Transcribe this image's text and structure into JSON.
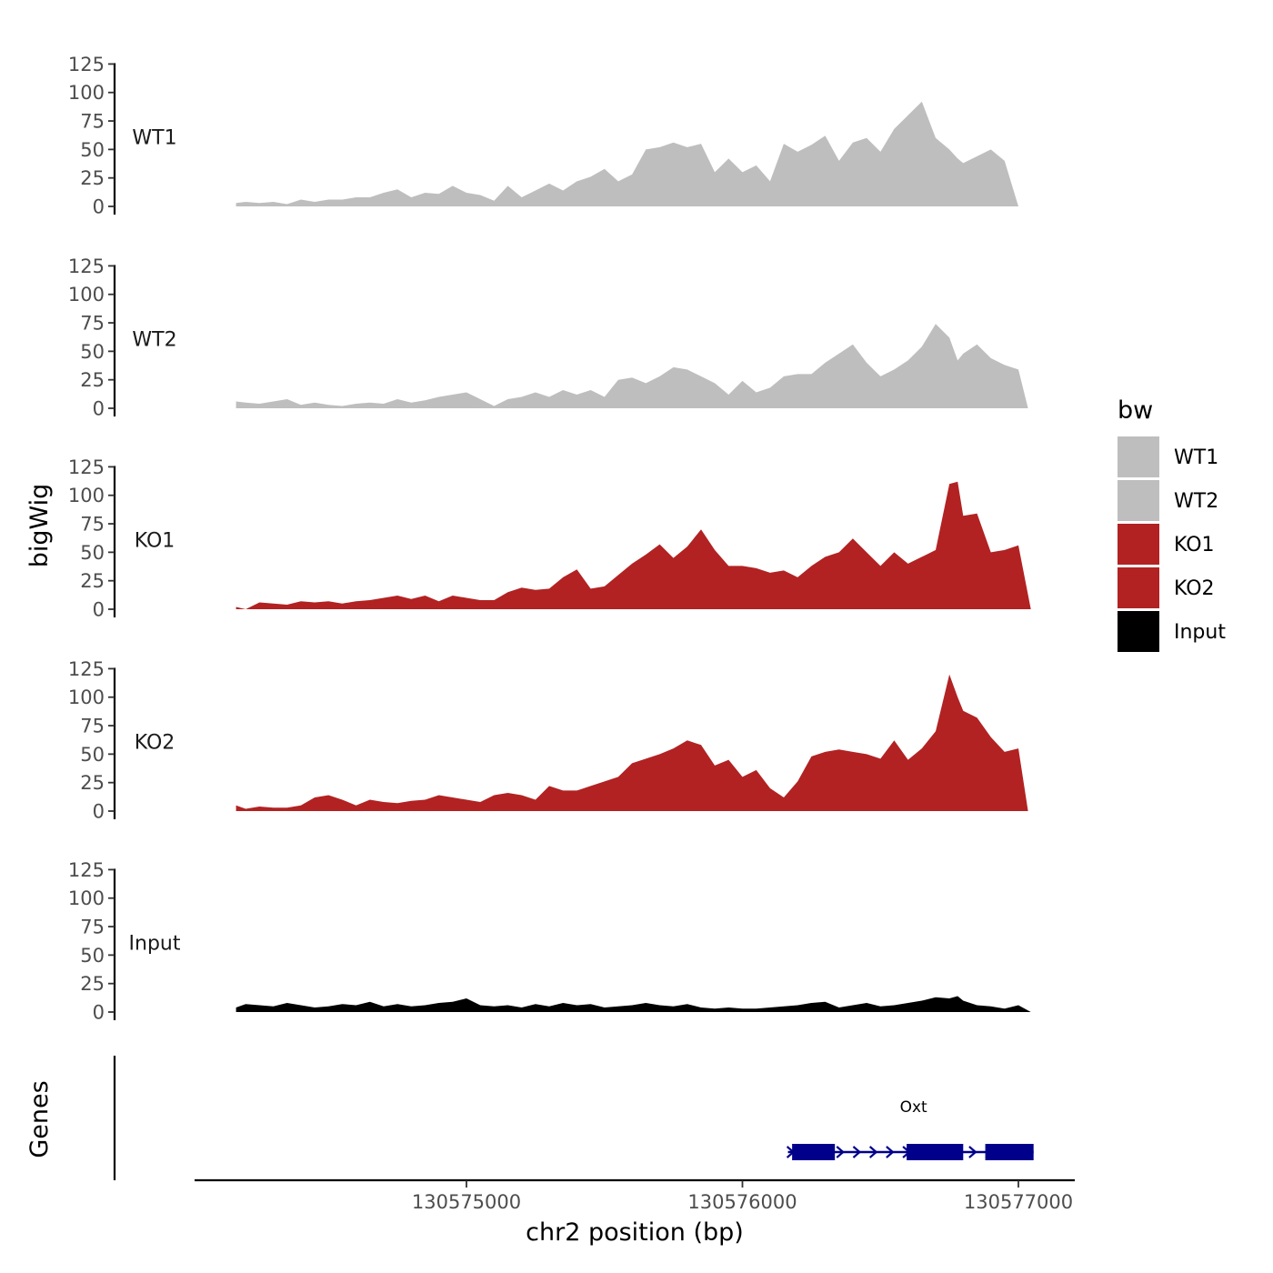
{
  "chart_data": {
    "type": "area",
    "ylabel": "bigWig",
    "xlabel": "chr2 position (bp)",
    "genes_label": "Genes",
    "ylim": [
      0,
      125
    ],
    "y_ticks": [
      0,
      25,
      50,
      75,
      100,
      125
    ],
    "xlim": [
      130574000,
      130577200
    ],
    "x_ticks": [
      130575000,
      130576000,
      130577000
    ],
    "x_tick_labels": [
      "130575000",
      "130576000",
      "130577000"
    ],
    "legend": {
      "title": "bw",
      "placement": "right",
      "entries": [
        {
          "label": "WT1",
          "color": "#bebebe"
        },
        {
          "label": "WT2",
          "color": "#bebebe"
        },
        {
          "label": "KO1",
          "color": "#b22222"
        },
        {
          "label": "KO2",
          "color": "#b22222"
        },
        {
          "label": "Input",
          "color": "#000000"
        }
      ]
    },
    "series": [
      {
        "name": "WT1",
        "color": "#bebebe",
        "x": [
          130574165,
          130574200,
          130574250,
          130574300,
          130574350,
          130574400,
          130574450,
          130574500,
          130574550,
          130574600,
          130574650,
          130574700,
          130574750,
          130574800,
          130574850,
          130574900,
          130574950,
          130575000,
          130575050,
          130575100,
          130575150,
          130575200,
          130575250,
          130575300,
          130575350,
          130575400,
          130575450,
          130575500,
          130575550,
          130575600,
          130575650,
          130575700,
          130575750,
          130575800,
          130575850,
          130575900,
          130575950,
          130576000,
          130576050,
          130576100,
          130576150,
          130576200,
          130576250,
          130576300,
          130576350,
          130576400,
          130576450,
          130576500,
          130576550,
          130576600,
          130576650,
          130576700,
          130576750,
          130576780,
          130576800,
          130576850,
          130576900,
          130576950,
          130577000,
          130577035
        ],
        "y": [
          3,
          4,
          3,
          4,
          2,
          6,
          4,
          6,
          6,
          8,
          8,
          12,
          15,
          8,
          12,
          11,
          18,
          12,
          10,
          5,
          18,
          8,
          14,
          20,
          14,
          22,
          26,
          33,
          22,
          28,
          50,
          52,
          56,
          52,
          55,
          30,
          42,
          30,
          36,
          22,
          55,
          48,
          54,
          62,
          40,
          56,
          60,
          48,
          68,
          80,
          92,
          60,
          50,
          42,
          38,
          44,
          50,
          40,
          0,
          0
        ]
      },
      {
        "name": "WT2",
        "color": "#bebebe",
        "x": [
          130574165,
          130574200,
          130574250,
          130574300,
          130574350,
          130574400,
          130574450,
          130574500,
          130574550,
          130574600,
          130574650,
          130574700,
          130574750,
          130574800,
          130574850,
          130574900,
          130574950,
          130575000,
          130575050,
          130575100,
          130575150,
          130575200,
          130575250,
          130575300,
          130575350,
          130575400,
          130575450,
          130575500,
          130575550,
          130575600,
          130575650,
          130575700,
          130575750,
          130575800,
          130575850,
          130575900,
          130575950,
          130576000,
          130576050,
          130576100,
          130576150,
          130576200,
          130576250,
          130576300,
          130576350,
          130576400,
          130576450,
          130576500,
          130576550,
          130576600,
          130576650,
          130576700,
          130576750,
          130576780,
          130576800,
          130576850,
          130576900,
          130576950,
          130577000,
          130577035
        ],
        "y": [
          6,
          5,
          4,
          6,
          8,
          3,
          5,
          3,
          2,
          4,
          5,
          4,
          8,
          5,
          7,
          10,
          12,
          14,
          8,
          2,
          8,
          10,
          14,
          10,
          16,
          12,
          16,
          10,
          25,
          27,
          22,
          28,
          36,
          34,
          28,
          22,
          12,
          24,
          14,
          18,
          28,
          30,
          30,
          40,
          48,
          56,
          40,
          28,
          34,
          42,
          54,
          74,
          62,
          42,
          48,
          56,
          44,
          38,
          34,
          0
        ]
      },
      {
        "name": "KO1",
        "color": "#b22222",
        "x": [
          130574165,
          130574200,
          130574250,
          130574300,
          130574350,
          130574400,
          130574450,
          130574500,
          130574550,
          130574600,
          130574650,
          130574700,
          130574750,
          130574800,
          130574850,
          130574900,
          130574950,
          130575000,
          130575050,
          130575100,
          130575150,
          130575200,
          130575250,
          130575300,
          130575350,
          130575400,
          130575450,
          130575500,
          130575550,
          130575600,
          130575650,
          130575700,
          130575750,
          130575800,
          130575850,
          130575900,
          130575950,
          130576000,
          130576050,
          130576100,
          130576150,
          130576200,
          130576250,
          130576300,
          130576350,
          130576400,
          130576450,
          130576500,
          130576550,
          130576600,
          130576650,
          130576700,
          130576750,
          130576780,
          130576800,
          130576850,
          130576900,
          130576950,
          130577000,
          130577045
        ],
        "y": [
          2,
          0,
          6,
          5,
          4,
          7,
          6,
          7,
          5,
          7,
          8,
          10,
          12,
          9,
          12,
          7,
          12,
          10,
          8,
          8,
          15,
          19,
          17,
          18,
          28,
          35,
          18,
          20,
          30,
          40,
          48,
          57,
          45,
          55,
          70,
          52,
          38,
          38,
          36,
          32,
          34,
          28,
          38,
          46,
          50,
          62,
          50,
          38,
          50,
          40,
          46,
          52,
          110,
          112,
          82,
          84,
          50,
          52,
          56,
          0
        ]
      },
      {
        "name": "KO2",
        "color": "#b22222",
        "x": [
          130574165,
          130574200,
          130574250,
          130574300,
          130574350,
          130574400,
          130574450,
          130574500,
          130574550,
          130574600,
          130574650,
          130574700,
          130574750,
          130574800,
          130574850,
          130574900,
          130574950,
          130575000,
          130575050,
          130575100,
          130575150,
          130575200,
          130575250,
          130575300,
          130575350,
          130575400,
          130575450,
          130575500,
          130575550,
          130575600,
          130575650,
          130575700,
          130575750,
          130575800,
          130575850,
          130575900,
          130575950,
          130576000,
          130576050,
          130576100,
          130576150,
          130576200,
          130576250,
          130576300,
          130576350,
          130576400,
          130576450,
          130576500,
          130576550,
          130576600,
          130576650,
          130576700,
          130576750,
          130576780,
          130576800,
          130576850,
          130576900,
          130576950,
          130577000,
          130577035
        ],
        "y": [
          5,
          2,
          4,
          3,
          3,
          5,
          12,
          14,
          10,
          5,
          10,
          8,
          7,
          9,
          10,
          14,
          12,
          10,
          8,
          14,
          16,
          14,
          10,
          22,
          18,
          18,
          22,
          26,
          30,
          42,
          46,
          50,
          55,
          62,
          58,
          40,
          45,
          30,
          36,
          20,
          12,
          26,
          48,
          52,
          54,
          52,
          50,
          46,
          62,
          45,
          55,
          70,
          120,
          100,
          88,
          82,
          65,
          52,
          55,
          0
        ]
      },
      {
        "name": "Input",
        "color": "#000000",
        "x": [
          130574165,
          130574200,
          130574250,
          130574300,
          130574350,
          130574400,
          130574450,
          130574500,
          130574550,
          130574600,
          130574650,
          130574700,
          130574750,
          130574800,
          130574850,
          130574900,
          130574950,
          130575000,
          130575050,
          130575100,
          130575150,
          130575200,
          130575250,
          130575300,
          130575350,
          130575400,
          130575450,
          130575500,
          130575550,
          130575600,
          130575650,
          130575700,
          130575750,
          130575800,
          130575850,
          130575900,
          130575950,
          130576000,
          130576050,
          130576100,
          130576150,
          130576200,
          130576250,
          130576300,
          130576350,
          130576400,
          130576450,
          130576500,
          130576550,
          130576600,
          130576650,
          130576700,
          130576750,
          130576780,
          130576800,
          130576850,
          130576900,
          130576950,
          130577000,
          130577045
        ],
        "y": [
          4,
          7,
          6,
          5,
          8,
          6,
          4,
          5,
          7,
          6,
          9,
          5,
          7,
          5,
          6,
          8,
          9,
          12,
          6,
          5,
          6,
          4,
          7,
          5,
          8,
          6,
          7,
          4,
          5,
          6,
          8,
          6,
          5,
          7,
          4,
          3,
          4,
          3,
          3,
          4,
          5,
          6,
          8,
          9,
          4,
          6,
          8,
          5,
          6,
          8,
          10,
          13,
          12,
          14,
          10,
          6,
          5,
          3,
          6,
          0
        ]
      }
    ],
    "genes": [
      {
        "name": "Oxt",
        "start": 130576165,
        "end": 130577055,
        "strand": "+",
        "exons": [
          [
            130576180,
            130576335
          ],
          [
            130576595,
            130576800
          ],
          [
            130576880,
            130577055
          ]
        ]
      }
    ]
  }
}
